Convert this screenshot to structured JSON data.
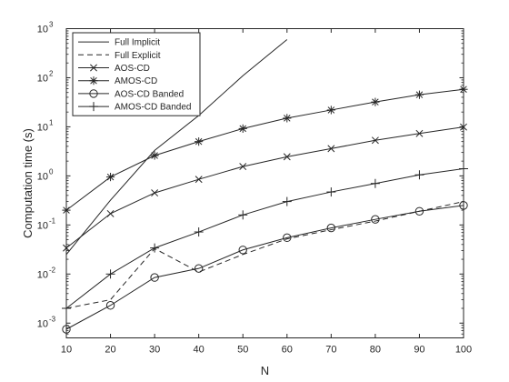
{
  "chart_data": {
    "type": "line",
    "xlabel": "N",
    "ylabel": "Computation time (s)",
    "xlim": [
      10,
      100
    ],
    "ylim": [
      0.0005,
      1000
    ],
    "yscale": "log",
    "x_ticks": [
      10,
      20,
      30,
      40,
      50,
      60,
      70,
      80,
      90,
      100
    ],
    "y_ticks": [
      {
        "value": 0.001,
        "base": "10",
        "exp": "-3"
      },
      {
        "value": 0.01,
        "base": "10",
        "exp": "-2"
      },
      {
        "value": 0.1,
        "base": "10",
        "exp": "-1"
      },
      {
        "value": 1,
        "base": "10",
        "exp": "0"
      },
      {
        "value": 10,
        "base": "10",
        "exp": "1"
      },
      {
        "value": 100,
        "base": "10",
        "exp": "2"
      },
      {
        "value": 1000,
        "base": "10",
        "exp": "3"
      }
    ],
    "grid": false,
    "legend_position": "top-left",
    "series": [
      {
        "name": "Full Implicit",
        "line": "solid",
        "marker": "none",
        "x": [
          10,
          20,
          30,
          40,
          50,
          60
        ],
        "y": [
          0.025,
          0.32,
          3.3,
          17,
          110,
          600
        ]
      },
      {
        "name": "Full Explicit",
        "line": "dashed",
        "marker": "none",
        "x": [
          10,
          20,
          30,
          40,
          50,
          60,
          70,
          80,
          90,
          100
        ],
        "y": [
          0.002,
          0.003,
          0.033,
          0.011,
          0.025,
          0.052,
          0.08,
          0.12,
          0.19,
          0.3
        ]
      },
      {
        "name": "AOS-CD",
        "line": "solid",
        "marker": "x",
        "x": [
          10,
          20,
          30,
          40,
          50,
          60,
          70,
          80,
          90,
          100
        ],
        "y": [
          0.034,
          0.17,
          0.45,
          0.85,
          1.55,
          2.45,
          3.6,
          5.3,
          7.3,
          9.9
        ]
      },
      {
        "name": "AMOS-CD",
        "line": "solid",
        "marker": "asterisk",
        "x": [
          10,
          20,
          30,
          40,
          50,
          60,
          70,
          80,
          90,
          100
        ],
        "y": [
          0.2,
          0.95,
          2.6,
          5.0,
          9.2,
          15,
          22,
          32,
          45,
          58
        ]
      },
      {
        "name": "AOS-CD Banded",
        "line": "solid",
        "marker": "circle",
        "x": [
          10,
          20,
          30,
          40,
          50,
          60,
          70,
          80,
          90,
          100
        ],
        "y": [
          0.00075,
          0.0023,
          0.0085,
          0.013,
          0.031,
          0.055,
          0.087,
          0.13,
          0.19,
          0.25
        ]
      },
      {
        "name": "AMOS-CD Banded",
        "line": "solid",
        "marker": "plus",
        "x": [
          10,
          20,
          30,
          40,
          50,
          60,
          70,
          80,
          90,
          100
        ],
        "y": [
          0.002,
          0.01,
          0.034,
          0.072,
          0.16,
          0.3,
          0.47,
          0.7,
          1.05,
          1.4
        ]
      }
    ]
  }
}
